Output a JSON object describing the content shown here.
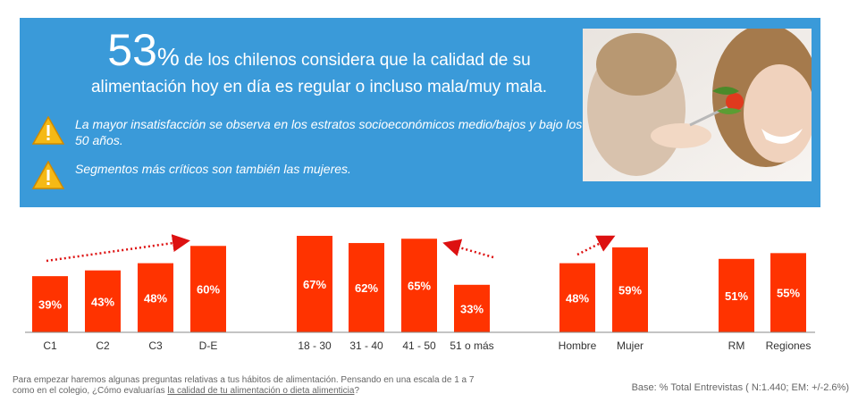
{
  "banner": {
    "headline_big": "53",
    "headline_pct": "%",
    "headline_line1": " de los chilenos considera que la calidad de su",
    "headline_line2": "alimentación hoy en día es regular o incluso mala/muy mala.",
    "bullets": [
      "La mayor insatisfacción se observa en los estratos socioeconómicos medio/bajos y bajo los 50 años.",
      "Segmentos más críticos son también las mujeres."
    ],
    "warning_icon": "warning-triangle-icon",
    "photo_semantic": "woman-eating-salad-photo"
  },
  "colors": {
    "banner_bg": "#3a9ad9",
    "bar": "#ff3300",
    "arrow": "#dd1111"
  },
  "chart_data": {
    "type": "bar",
    "categories": [
      "C1",
      "C2",
      "C3",
      "D-E",
      "18 - 30",
      "31 - 40",
      "41 - 50",
      "51 o más",
      "Hombre",
      "Mujer",
      "RM",
      "Regiones"
    ],
    "values": [
      39,
      43,
      48,
      60,
      67,
      62,
      65,
      33,
      48,
      59,
      51,
      55
    ],
    "value_labels": [
      "39%",
      "43%",
      "48%",
      "60%",
      "67%",
      "62%",
      "65%",
      "33%",
      "48%",
      "59%",
      "51%",
      "55%"
    ],
    "groups": [
      {
        "categories": [
          "C1",
          "C2",
          "C3",
          "D-E"
        ]
      },
      {
        "categories": [
          "18 - 30",
          "31 - 40",
          "41 - 50",
          "51 o más"
        ]
      },
      {
        "categories": [
          "Hombre",
          "Mujer"
        ]
      },
      {
        "categories": [
          "RM",
          "Regiones"
        ]
      }
    ],
    "title": "",
    "xlabel": "",
    "ylabel": "",
    "ylim": [
      0,
      70
    ],
    "grid": false,
    "annotations": [
      "trend-arrow-up-right",
      "trend-arrow-left",
      "trend-arrow-up-right"
    ]
  },
  "footnote": {
    "line1": "Para empezar haremos algunas preguntas relativas a tus hábitos de alimentación.  Pensando en una escala de 1 a 7",
    "line2_prefix": "como en el colegio, ¿Cómo evaluarías ",
    "line2_underlined": "la calidad de tu alimentación o dieta alimenticia",
    "line2_suffix": "?"
  },
  "base_note": "Base: % Total Entrevistas ( N:1.440; EM: +/-2.6%)"
}
